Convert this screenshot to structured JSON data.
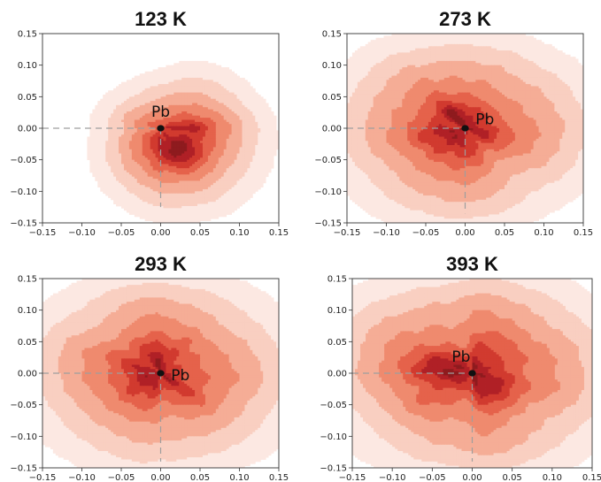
{
  "chart_data": [
    {
      "type": "heatmap",
      "title": "123 K",
      "xlim": [
        -0.15,
        0.15
      ],
      "ylim": [
        -0.15,
        0.15
      ],
      "xticks": [
        "−0.15",
        "−0.10",
        "−0.05",
        "0.00",
        "0.05",
        "0.10",
        "0.15"
      ],
      "yticks": [
        "−0.15",
        "−0.10",
        "−0.05",
        "0.00",
        "0.05",
        "0.10",
        "0.15"
      ],
      "marker": {
        "label": "Pb",
        "x": 0.0,
        "y": 0.0,
        "label_x": 0.0,
        "label_y": 0.025
      },
      "guide_from": [
        -0.15,
        0.0
      ],
      "guide_to": [
        0.0,
        -0.125
      ],
      "blobs": [
        {
          "x": 0.028,
          "y": -0.032,
          "sx": 0.055,
          "sy": 0.055,
          "w": 1.0
        },
        {
          "x": 0.01,
          "y": -0.01,
          "sx": 0.035,
          "sy": 0.035,
          "w": 0.45
        },
        {
          "x": 0.035,
          "y": -0.03,
          "sx": 0.025,
          "sy": 0.025,
          "w": 0.4
        },
        {
          "x": 0.02,
          "y": -0.045,
          "sx": 0.02,
          "sy": 0.02,
          "w": 0.25
        },
        {
          "x": 0.04,
          "y": 0.02,
          "sx": 0.04,
          "sy": 0.04,
          "w": 0.25
        },
        {
          "x": 0.05,
          "y": 0.07,
          "sx": 0.035,
          "sy": 0.03,
          "w": 0.1
        },
        {
          "x": 0.075,
          "y": -0.015,
          "sx": 0.035,
          "sy": 0.04,
          "w": 0.2
        },
        {
          "x": 0.01,
          "y": -0.09,
          "sx": 0.04,
          "sy": 0.03,
          "w": 0.15
        },
        {
          "x": -0.035,
          "y": 0.0,
          "sx": 0.03,
          "sy": 0.04,
          "w": 0.15
        },
        {
          "x": -0.02,
          "y": -0.04,
          "sx": 0.03,
          "sy": 0.03,
          "w": 0.15
        }
      ]
    },
    {
      "type": "heatmap",
      "title": "273 K",
      "xlim": [
        -0.15,
        0.15
      ],
      "ylim": [
        -0.15,
        0.15
      ],
      "xticks": [
        "−0.15",
        "−0.10",
        "−0.05",
        "0.00",
        "0.05",
        "0.10",
        "0.15"
      ],
      "yticks": [
        "−0.15",
        "−0.10",
        "−0.05",
        "0.00",
        "0.05",
        "0.10",
        "0.15"
      ],
      "marker": {
        "label": "Pb",
        "x": 0.0,
        "y": 0.0,
        "label_x": 0.025,
        "label_y": 0.013
      },
      "guide_from": [
        -0.15,
        0.0
      ],
      "guide_to": [
        0.0,
        -0.135
      ],
      "blobs": [
        {
          "x": -0.005,
          "y": -0.005,
          "sx": 0.085,
          "sy": 0.075,
          "w": 1.0
        },
        {
          "x": -0.01,
          "y": 0.0,
          "sx": 0.045,
          "sy": 0.045,
          "w": 0.5
        },
        {
          "x": -0.005,
          "y": 0.02,
          "sx": 0.025,
          "sy": 0.02,
          "w": 0.4
        },
        {
          "x": -0.04,
          "y": -0.01,
          "sx": 0.025,
          "sy": 0.025,
          "w": 0.3
        },
        {
          "x": 0.005,
          "y": -0.04,
          "sx": 0.02,
          "sy": 0.02,
          "w": 0.25
        },
        {
          "x": 0.03,
          "y": -0.01,
          "sx": 0.02,
          "sy": 0.02,
          "w": 0.2
        },
        {
          "x": -0.1,
          "y": 0.02,
          "sx": 0.04,
          "sy": 0.05,
          "w": 0.3
        },
        {
          "x": 0.1,
          "y": 0.01,
          "sx": 0.04,
          "sy": 0.05,
          "w": 0.3
        },
        {
          "x": 0.0,
          "y": 0.09,
          "sx": 0.06,
          "sy": 0.035,
          "w": 0.25
        },
        {
          "x": 0.0,
          "y": -0.1,
          "sx": 0.06,
          "sy": 0.035,
          "w": 0.25
        }
      ]
    },
    {
      "type": "heatmap",
      "title": "293 K",
      "xlim": [
        -0.15,
        0.15
      ],
      "ylim": [
        -0.15,
        0.15
      ],
      "xticks": [
        "−0.15",
        "−0.10",
        "−0.05",
        "0.00",
        "0.05",
        "0.10",
        "0.15"
      ],
      "yticks": [
        "−0.15",
        "−0.10",
        "−0.05",
        "0.00",
        "0.05",
        "0.10",
        "0.15"
      ],
      "marker": {
        "label": "Pb",
        "x": 0.0,
        "y": 0.0,
        "label_x": 0.025,
        "label_y": -0.004
      },
      "guide_from": [
        -0.15,
        0.0
      ],
      "guide_to": [
        0.0,
        -0.14
      ],
      "blobs": [
        {
          "x": 0.0,
          "y": 0.0,
          "sx": 0.09,
          "sy": 0.08,
          "w": 1.0
        },
        {
          "x": -0.005,
          "y": 0.005,
          "sx": 0.05,
          "sy": 0.045,
          "w": 0.5
        },
        {
          "x": -0.01,
          "y": 0.0,
          "sx": 0.025,
          "sy": 0.025,
          "w": 0.45
        },
        {
          "x": -0.035,
          "y": 0.035,
          "sx": 0.025,
          "sy": 0.02,
          "w": 0.25
        },
        {
          "x": 0.04,
          "y": -0.035,
          "sx": 0.025,
          "sy": 0.02,
          "w": 0.2
        },
        {
          "x": -0.03,
          "y": -0.04,
          "sx": 0.025,
          "sy": 0.02,
          "w": 0.2
        },
        {
          "x": 0.03,
          "y": 0.045,
          "sx": 0.025,
          "sy": 0.02,
          "w": 0.2
        },
        {
          "x": -0.1,
          "y": 0.02,
          "sx": 0.04,
          "sy": 0.05,
          "w": 0.3
        },
        {
          "x": 0.1,
          "y": 0.0,
          "sx": 0.04,
          "sy": 0.05,
          "w": 0.3
        },
        {
          "x": 0.0,
          "y": 0.1,
          "sx": 0.06,
          "sy": 0.03,
          "w": 0.25
        },
        {
          "x": 0.0,
          "y": -0.1,
          "sx": 0.06,
          "sy": 0.035,
          "w": 0.25
        }
      ]
    },
    {
      "type": "heatmap",
      "title": "393 K",
      "xlim": [
        -0.15,
        0.15
      ],
      "ylim": [
        -0.15,
        0.15
      ],
      "xticks": [
        "−0.15",
        "−0.10",
        "−0.05",
        "0.00",
        "0.05",
        "0.10",
        "0.15"
      ],
      "yticks": [
        "−0.15",
        "−0.10",
        "−0.05",
        "0.00",
        "0.05",
        "0.10",
        "0.15"
      ],
      "marker": {
        "label": "Pb",
        "x": 0.0,
        "y": 0.0,
        "label_x": -0.014,
        "label_y": 0.025
      },
      "guide_from": [
        -0.15,
        0.0
      ],
      "guide_to": [
        0.0,
        -0.14
      ],
      "blobs": [
        {
          "x": 0.0,
          "y": 0.0,
          "sx": 0.095,
          "sy": 0.085,
          "w": 1.0
        },
        {
          "x": -0.01,
          "y": 0.0,
          "sx": 0.055,
          "sy": 0.045,
          "w": 0.5
        },
        {
          "x": -0.05,
          "y": 0.012,
          "sx": 0.025,
          "sy": 0.015,
          "w": 0.45
        },
        {
          "x": 0.035,
          "y": -0.028,
          "sx": 0.02,
          "sy": 0.02,
          "w": 0.45
        },
        {
          "x": 0.0,
          "y": 0.0,
          "sx": 0.025,
          "sy": 0.02,
          "w": 0.3
        },
        {
          "x": -0.06,
          "y": -0.05,
          "sx": 0.025,
          "sy": 0.02,
          "w": 0.2
        },
        {
          "x": 0.04,
          "y": 0.04,
          "sx": 0.025,
          "sy": 0.02,
          "w": 0.2
        },
        {
          "x": -0.11,
          "y": 0.03,
          "sx": 0.04,
          "sy": 0.05,
          "w": 0.3
        },
        {
          "x": 0.11,
          "y": 0.0,
          "sx": 0.04,
          "sy": 0.05,
          "w": 0.3
        },
        {
          "x": 0.0,
          "y": 0.1,
          "sx": 0.06,
          "sy": 0.03,
          "w": 0.25
        },
        {
          "x": 0.0,
          "y": -0.11,
          "sx": 0.06,
          "sy": 0.03,
          "w": 0.25
        }
      ]
    }
  ],
  "colors": {
    "levels": [
      "#fce8e2",
      "#f9cfc1",
      "#f5ad96",
      "#ef8a6e",
      "#e5624b",
      "#d13a2f",
      "#b02026",
      "#8e1b1e"
    ],
    "marker": "#111111",
    "guide": "#9e9e9e"
  }
}
